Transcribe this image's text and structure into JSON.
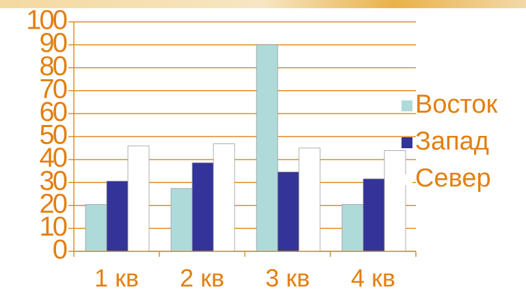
{
  "chart_data": {
    "type": "bar",
    "categories": [
      "1 кв",
      "2 кв",
      "3 кв",
      "4 кв"
    ],
    "series": [
      {
        "name": "Восток",
        "color": "#aedada",
        "values": [
          20.4,
          27.4,
          90,
          20.4
        ]
      },
      {
        "name": "Запад",
        "color": "#333399",
        "values": [
          30.6,
          38.6,
          34.6,
          31.6
        ]
      },
      {
        "name": "Север",
        "color": "#ffffff",
        "values": [
          45.9,
          46.9,
          45,
          43.9
        ]
      }
    ],
    "ylim": [
      0,
      100
    ],
    "yticks": [
      0,
      10,
      20,
      30,
      40,
      50,
      60,
      70,
      80,
      90,
      100
    ],
    "grid": true,
    "legend": "right"
  }
}
